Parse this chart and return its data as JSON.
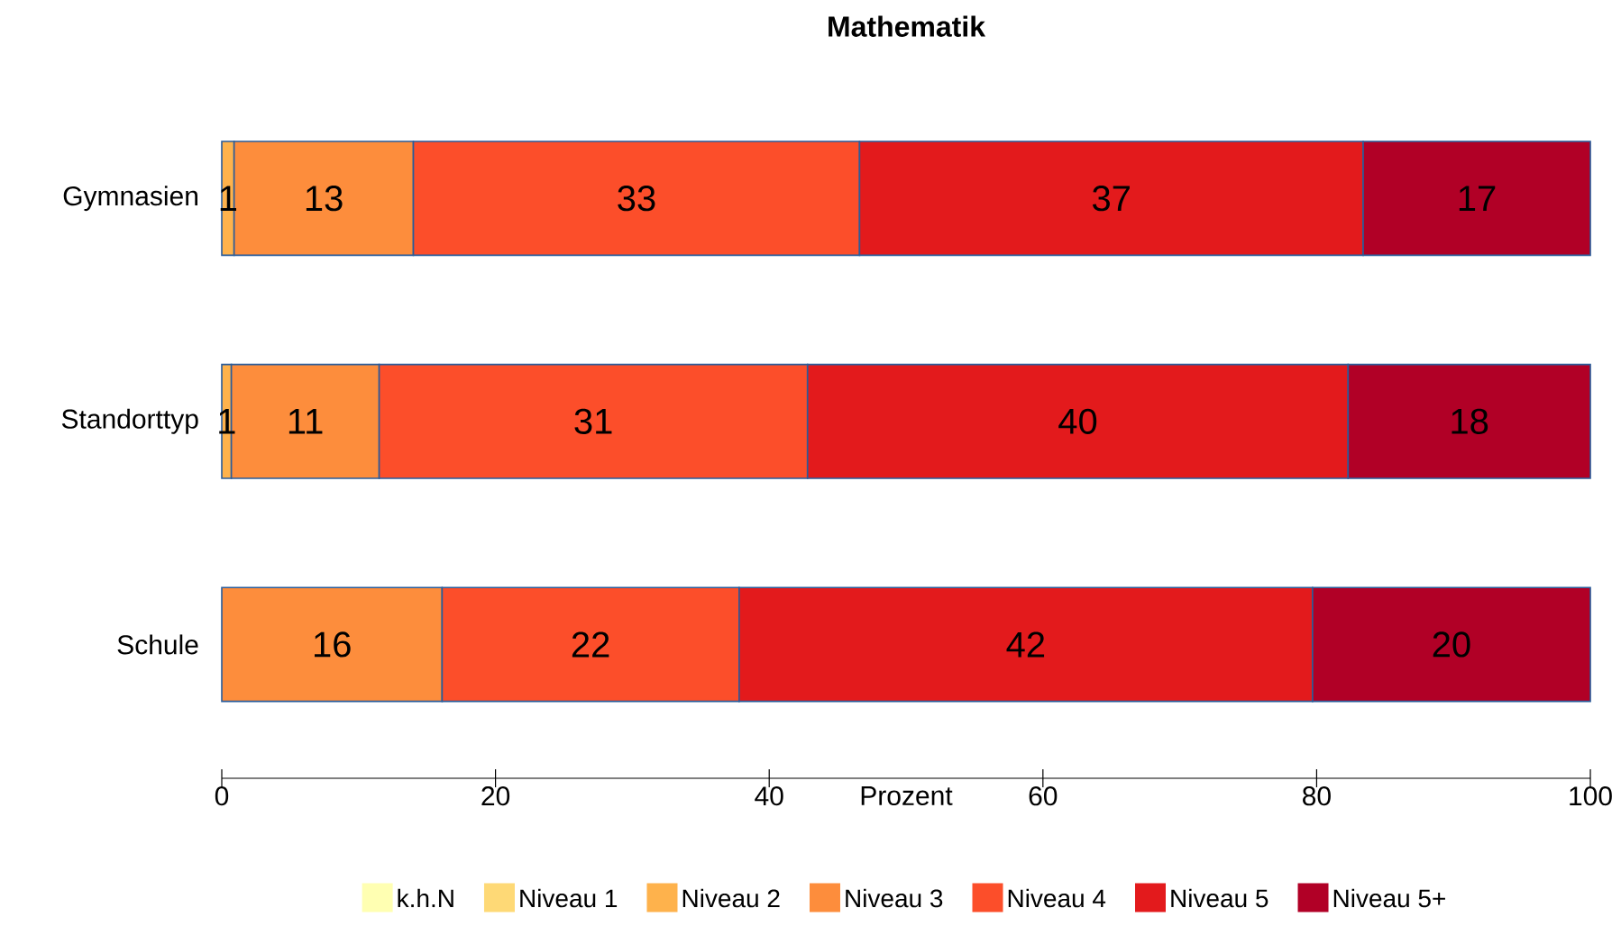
{
  "chart_data": {
    "type": "bar",
    "title": "Mathematik",
    "xlabel": "Prozent",
    "orientation": "horizontal",
    "stacked": true,
    "legend": "bottom",
    "categories": [
      "Gymnasien",
      "Standorttyp",
      "Schule"
    ],
    "xlim": [
      0,
      100
    ],
    "xticks": [
      0,
      20,
      40,
      60,
      80,
      100
    ],
    "series": [
      {
        "name": "k.h.N",
        "color": "#ffffb2",
        "values": [
          null,
          null,
          null
        ]
      },
      {
        "name": "Niveau 1",
        "color": "#fed976",
        "values": [
          null,
          null,
          null
        ]
      },
      {
        "name": "Niveau 2",
        "color": "#feb24c",
        "values": [
          0.9,
          0.7,
          null
        ],
        "value_labels": [
          "1",
          "1",
          null
        ]
      },
      {
        "name": "Niveau 3",
        "color": "#fd8d3c",
        "values": [
          13.1,
          10.8,
          16.1
        ],
        "value_labels": [
          "13",
          "11",
          "16"
        ]
      },
      {
        "name": "Niveau 4",
        "color": "#fc4e2a",
        "values": [
          32.6,
          31.3,
          21.7
        ],
        "value_labels": [
          "33",
          "31",
          "22"
        ]
      },
      {
        "name": "Niveau 5",
        "color": "#e31a1c",
        "values": [
          36.8,
          39.5,
          41.9
        ],
        "value_labels": [
          "37",
          "40",
          "42"
        ]
      },
      {
        "name": "Niveau 5+",
        "color": "#b10026",
        "values": [
          16.6,
          17.7,
          20.3
        ],
        "value_labels": [
          "17",
          "18",
          "20"
        ]
      }
    ]
  }
}
